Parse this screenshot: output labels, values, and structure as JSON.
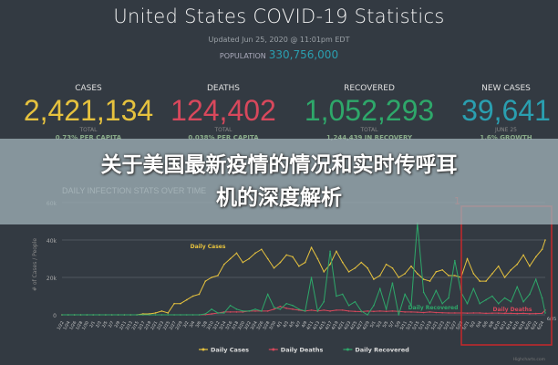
{
  "header": {
    "title": "United States COVID-19 Statistics",
    "updated": "Updated Jun 25, 2020 @ 11:01pm EDT",
    "population_label": "POPULATION",
    "population_value": "330,756,000"
  },
  "stats": [
    {
      "label": "CASES",
      "value": "2,421,134",
      "sub": "TOTAL",
      "detail": "0.73% PER CAPITA",
      "color": "#e6c23e"
    },
    {
      "label": "DEATHS",
      "value": "124,402",
      "sub": "TOTAL",
      "detail": "0.038% PER CAPITA",
      "color": "#d8485c"
    },
    {
      "label": "RECOVERED",
      "value": "1,052,293",
      "sub": "TOTAL",
      "detail": "1,244,439 IN RECOVERY",
      "color": "#2ea86a"
    },
    {
      "label": "NEW CASES",
      "value": "39,641",
      "sub": "JUNE 25",
      "detail": "1.6% GROWTH",
      "color": "#2a9fb0"
    }
  ],
  "banner": {
    "line1": "关于美国最新疫情的情况和实时传呼耳",
    "line2": "机的深度解析"
  },
  "chart_data": {
    "type": "line",
    "title": "DAILY INFECTION STATS OVER TIME",
    "ylabel": "# of Cases / People",
    "ylim": [
      0,
      60000
    ],
    "yticks": [
      0,
      20000,
      40000,
      60000
    ],
    "ytick_labels": [
      "0",
      "20k",
      "40k",
      "60k"
    ],
    "grid": true,
    "legend_placement": "bottom",
    "credit": "Highcharts.com",
    "highlight_label": "1",
    "x": [
      "1/22",
      "1/24",
      "1/26",
      "1/28",
      "1/30",
      "2/1",
      "2/3",
      "2/5",
      "2/7",
      "2/9",
      "2/11",
      "2/13",
      "2/15",
      "2/17",
      "2/19",
      "2/21",
      "2/23",
      "2/25",
      "2/27",
      "2/29",
      "3/2",
      "3/4",
      "3/6",
      "3/8",
      "3/10",
      "3/12",
      "3/14",
      "3/16",
      "3/18",
      "3/20",
      "3/22",
      "3/24",
      "3/26",
      "3/28",
      "3/30",
      "4/1",
      "4/3",
      "4/5",
      "4/7",
      "4/9",
      "4/11",
      "4/13",
      "4/15",
      "4/17",
      "4/19",
      "4/21",
      "4/23",
      "4/25",
      "4/27",
      "4/29",
      "5/1",
      "5/3",
      "5/5",
      "5/7",
      "5/9",
      "5/11",
      "5/13",
      "5/15",
      "5/17",
      "5/19",
      "5/21",
      "5/23",
      "5/25",
      "5/27",
      "5/29",
      "5/31",
      "6/2",
      "6/4",
      "6/6",
      "6/8",
      "6/10",
      "6/12",
      "6/14",
      "6/16",
      "6/18",
      "6/20",
      "6/22",
      "6/24",
      "6/25"
    ],
    "series": [
      {
        "name": "Daily Cases",
        "color": "#e6c23e",
        "values": [
          0,
          0,
          0,
          0,
          0,
          0,
          0,
          0,
          0,
          0,
          0,
          0,
          0,
          500,
          500,
          1000,
          2000,
          1000,
          6000,
          6000,
          8000,
          10000,
          11000,
          18000,
          20000,
          21000,
          27000,
          30000,
          33000,
          28000,
          30000,
          33000,
          35000,
          30000,
          25000,
          28000,
          32000,
          31000,
          26000,
          28000,
          36000,
          30000,
          23000,
          27000,
          34000,
          28000,
          23000,
          25000,
          28000,
          25000,
          19000,
          21000,
          27000,
          25000,
          20000,
          22000,
          26000,
          22000,
          19000,
          18000,
          23000,
          24000,
          21000,
          21000,
          20000,
          30000,
          22000,
          18000,
          18000,
          22000,
          26000,
          20000,
          24000,
          27000,
          32000,
          26000,
          31000,
          35000,
          40000
        ]
      },
      {
        "name": "Daily Deaths",
        "color": "#d8485c",
        "values": [
          0,
          0,
          0,
          0,
          0,
          0,
          0,
          0,
          0,
          0,
          0,
          0,
          0,
          0,
          0,
          0,
          0,
          0,
          0,
          0,
          0,
          0,
          0,
          100,
          500,
          1000,
          1500,
          1500,
          1500,
          1500,
          2000,
          2000,
          2000,
          2000,
          3000,
          4500,
          3500,
          3000,
          2500,
          2000,
          2500,
          2000,
          2500,
          2000,
          2500,
          2500,
          2000,
          1800,
          1700,
          2000,
          1800,
          2000,
          1800,
          2000,
          1800,
          1500,
          1500,
          1400,
          1200,
          1500,
          1200,
          1100,
          1000,
          1000,
          1000,
          900,
          1000,
          1000,
          800,
          900,
          900,
          800,
          800,
          700,
          800,
          600,
          700,
          800,
          2500
        ]
      },
      {
        "name": "Daily Recovered",
        "color": "#2ea86a",
        "values": [
          0,
          0,
          0,
          0,
          0,
          0,
          0,
          0,
          0,
          0,
          0,
          0,
          0,
          0,
          0,
          0,
          0,
          0,
          0,
          0,
          0,
          0,
          0,
          500,
          3000,
          1000,
          1000,
          5000,
          3000,
          2000,
          2000,
          3000,
          2000,
          11000,
          4000,
          3000,
          6000,
          5000,
          3000,
          2000,
          20000,
          2000,
          7000,
          34000,
          10000,
          11000,
          5000,
          7000,
          2000,
          0,
          5000,
          14000,
          3000,
          17000,
          0,
          11000,
          5000,
          49000,
          12000,
          6000,
          13000,
          6000,
          9000,
          29000,
          12000,
          6000,
          14000,
          6000,
          8000,
          10000,
          6000,
          9000,
          7000,
          15000,
          7000,
          11000,
          19000,
          9000,
          1000
        ]
      }
    ],
    "annotations": [
      {
        "text": "Daily Cases",
        "series": "Daily Cases"
      },
      {
        "text": "Daily Recovered",
        "series": "Daily Recovered"
      },
      {
        "text": "Daily Deaths",
        "series": "Daily Deaths"
      }
    ]
  }
}
